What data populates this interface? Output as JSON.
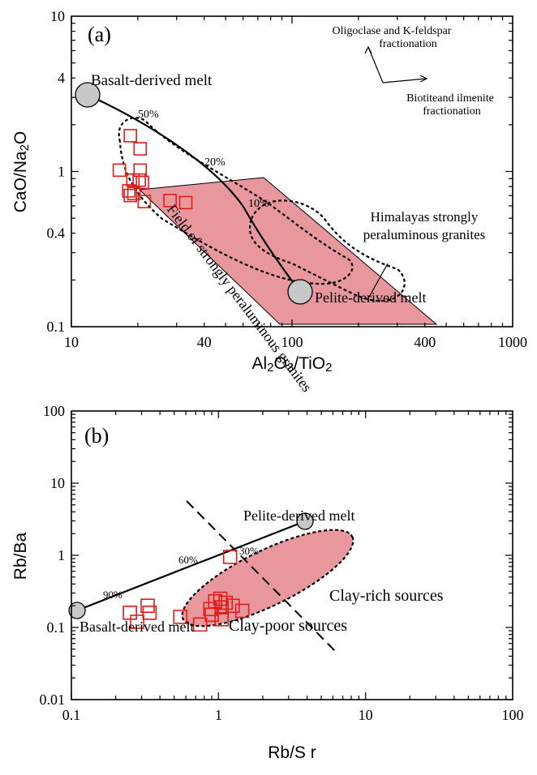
{
  "chart_data": [
    {
      "type": "scatter",
      "panel_label": "(a)",
      "xlabel": "Al2O3/TiO2",
      "ylabel": "CaO/Na2O",
      "xscale": "log",
      "yscale": "log",
      "xlim": [
        10,
        1000
      ],
      "ylim": [
        0.1,
        10
      ],
      "x_ticks": [
        "10",
        "40",
        "100",
        "400",
        "1000"
      ],
      "y_ticks": [
        "10",
        "4",
        "1",
        "0.4",
        "0.1"
      ],
      "samples": [
        {
          "x": 18.5,
          "y": 1.7
        },
        {
          "x": 20.5,
          "y": 1.4
        },
        {
          "x": 16.5,
          "y": 1.02
        },
        {
          "x": 20.5,
          "y": 1.02
        },
        {
          "x": 19.0,
          "y": 0.88
        },
        {
          "x": 20.3,
          "y": 0.88
        },
        {
          "x": 21.0,
          "y": 0.85
        },
        {
          "x": 18.2,
          "y": 0.75
        },
        {
          "x": 19.2,
          "y": 0.72
        },
        {
          "x": 18.5,
          "y": 0.7
        },
        {
          "x": 21.4,
          "y": 0.64
        },
        {
          "x": 28.0,
          "y": 0.65
        },
        {
          "x": 33.0,
          "y": 0.63
        }
      ],
      "endmembers": [
        {
          "label": "Basalt-derived melt",
          "x": 11.2,
          "y": 3.0
        },
        {
          "label": "Pelite-derived melt",
          "x": 113,
          "y": 0.2
        }
      ],
      "mixing_marks": [
        "50%",
        "20%",
        "10%"
      ],
      "fields": [
        "Field of strongly peraluminous granites",
        "Himalayas strongly peraluminous granites"
      ],
      "annotations": [
        "Oligoclase and K-feldspar fractionation",
        "Biotiteand ilmenite fractionation"
      ],
      "grid": false
    },
    {
      "type": "scatter",
      "panel_label": "(b)",
      "xlabel": "Rb/S r",
      "ylabel": "Rb/Ba",
      "xscale": "log",
      "yscale": "log",
      "xlim": [
        0.1,
        100
      ],
      "ylim": [
        0.01,
        100
      ],
      "x_ticks": [
        "0.1",
        "1",
        "10",
        "100"
      ],
      "y_ticks": [
        "100",
        "10",
        "1",
        "0.1",
        "0.01"
      ],
      "samples": [
        {
          "x": 1.2,
          "y": 0.95
        },
        {
          "x": 0.33,
          "y": 0.2
        },
        {
          "x": 0.34,
          "y": 0.16
        },
        {
          "x": 0.25,
          "y": 0.16
        },
        {
          "x": 0.28,
          "y": 0.12
        },
        {
          "x": 0.55,
          "y": 0.14
        },
        {
          "x": 0.75,
          "y": 0.11
        },
        {
          "x": 0.9,
          "y": 0.15
        },
        {
          "x": 0.95,
          "y": 0.23
        },
        {
          "x": 1.03,
          "y": 0.25
        },
        {
          "x": 1.05,
          "y": 0.19
        },
        {
          "x": 1.12,
          "y": 0.22
        },
        {
          "x": 1.25,
          "y": 0.2
        },
        {
          "x": 1.45,
          "y": 0.17
        },
        {
          "x": 1.05,
          "y": 0.13
        },
        {
          "x": 0.88,
          "y": 0.18
        }
      ],
      "endmembers": [
        {
          "label": "Basalt-derived melt",
          "x": 0.115,
          "y": 0.072
        },
        {
          "label": "Pelite-derived melt",
          "x": 4.2,
          "y": 2.0
        }
      ],
      "mixing_marks": [
        "90%",
        "60%",
        "30%"
      ],
      "regions": [
        "Clay-rich sources",
        "Clay-poor sources"
      ],
      "grid": false
    }
  ]
}
